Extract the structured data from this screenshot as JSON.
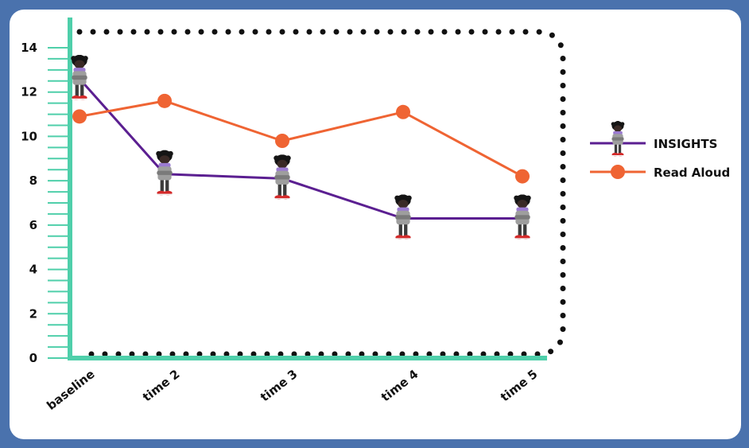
{
  "chart_data": {
    "type": "line",
    "title": "",
    "xlabel": "",
    "ylabel": "",
    "categories": [
      "baseline",
      "time 2",
      "time 3",
      "time 4",
      "time 5"
    ],
    "ylim": [
      0,
      14
    ],
    "yticks": [
      0,
      2,
      4,
      6,
      8,
      10,
      12,
      14
    ],
    "grid": false,
    "legend_position": "right",
    "series": [
      {
        "name": "INSIGHTS",
        "values": [
          12.6,
          8.3,
          8.1,
          6.3,
          6.3
        ],
        "color": "#5b1f91",
        "marker": "character-icon"
      },
      {
        "name": "Read Aloud",
        "values": [
          10.9,
          11.6,
          9.8,
          11.1,
          8.2
        ],
        "color": "#ef6433",
        "marker": "circle"
      }
    ]
  }
}
